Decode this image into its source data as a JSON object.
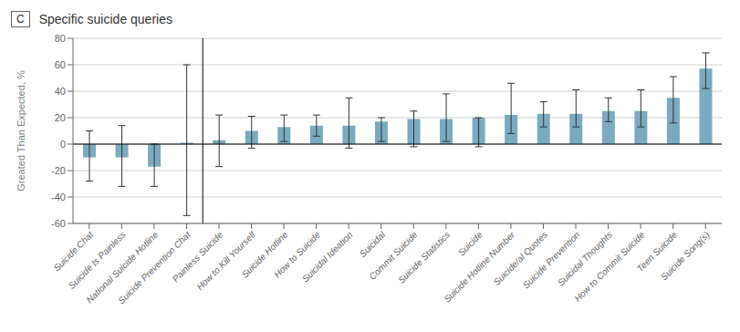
{
  "chart_data": {
    "type": "bar",
    "title": "Specific suicide queries",
    "annotations": [
      "C"
    ],
    "ylabel": "Greated Than Expected, %",
    "categories": [
      "Suicide Chat",
      "Suicide Is Painless",
      "National Suicide Hotline",
      "Suicide Prevention Chat",
      "Painless Suicide",
      "How to Kill Yourself",
      "Suicide Hotline",
      "How to Suicide",
      "Suicidal Ideation",
      "Suicidal",
      "Commit Suicide",
      "Suicide Statistics",
      "Suicide",
      "Suicide Hotline Number",
      "Suicide/al Quotes",
      "Suicide Prevention",
      "Suicidal Thoughts",
      "How to Commit Suicide",
      "Teen Suicide",
      "Suicide Song(s)"
    ],
    "values": [
      -10,
      -10,
      -17,
      1,
      3,
      10,
      13,
      14,
      14,
      17,
      19,
      19,
      20,
      22,
      23,
      23,
      25,
      25,
      35,
      57
    ],
    "ci_low": [
      -28,
      -32,
      -32,
      -54,
      -17,
      -3,
      2,
      6,
      -3,
      2,
      -2,
      2,
      -2,
      8,
      13,
      13,
      17,
      13,
      16,
      42
    ],
    "ci_high": [
      10,
      14,
      0,
      60,
      22,
      21,
      22,
      22,
      35,
      20,
      25,
      38,
      20,
      46,
      32,
      41,
      35,
      41,
      51,
      69
    ],
    "color": "#7aaabf",
    "ylim": [
      -60,
      80
    ],
    "yticks": [
      -60,
      -40,
      -20,
      0,
      20,
      40,
      60,
      80
    ],
    "grid": true,
    "divider_x": 3.5
  }
}
